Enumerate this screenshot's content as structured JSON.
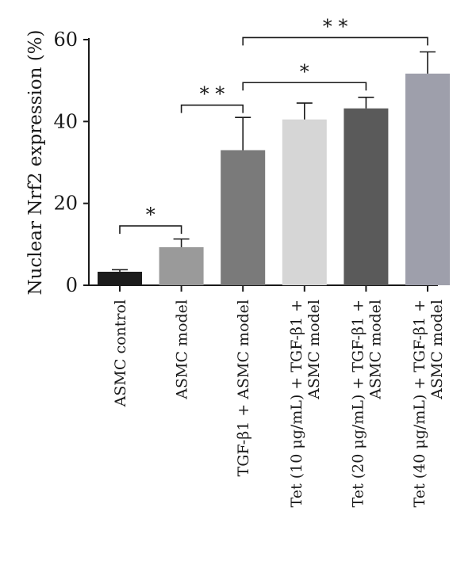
{
  "chart_data": {
    "type": "bar",
    "ylabel": "Nuclear Nrf2 expression (%)",
    "ylim": [
      0,
      60
    ],
    "yticks": [
      "0",
      "20",
      "40",
      "60"
    ],
    "grid": false,
    "categories": [
      [
        "ASMC control"
      ],
      [
        "ASMC model"
      ],
      [
        "TGF-β1 + ASMC model"
      ],
      [
        "Tet (10 μg/mL) + TGF-β1 +",
        "ASMC model"
      ],
      [
        "Tet (20 μg/mL) + TGF-β1 +",
        "ASMC model"
      ],
      [
        "Tet (40 μg/mL) + TGF-β1 +",
        "ASMC model"
      ]
    ],
    "values": [
      3.3,
      9.3,
      33.0,
      40.5,
      43.2,
      51.7
    ],
    "errors": [
      0.5,
      2.0,
      8.0,
      4.0,
      2.7,
      5.3
    ],
    "colors": [
      "#1c1c1c",
      "#9a9a9a",
      "#7a7a7a",
      "#d6d6d6",
      "#5a5a5a",
      "#9e9fab"
    ],
    "significance": [
      {
        "from": 0,
        "to": 1,
        "label": "*",
        "y": 14.5
      },
      {
        "from": 1,
        "to": 2,
        "label": "* *",
        "y": 44.0
      },
      {
        "from": 2,
        "to": 4,
        "label": "*",
        "y": 49.5
      },
      {
        "from": 2,
        "to": 5,
        "label": "* *",
        "y": 60.5
      }
    ]
  }
}
